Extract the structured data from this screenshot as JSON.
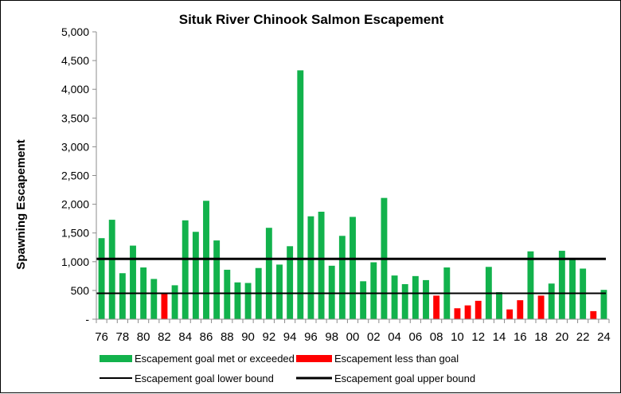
{
  "chart_data": {
    "type": "bar",
    "title": "Situk River Chinook Salmon Escapement",
    "ylabel": "Spawning Escapement",
    "xlabel": "",
    "ylim": [
      0,
      5000
    ],
    "yticks": [
      0,
      500,
      1000,
      1500,
      2000,
      2500,
      3000,
      3500,
      4000,
      4500,
      5000
    ],
    "ytick_labels": [
      "-",
      "500",
      "1,000",
      "1,500",
      "2,000",
      "2,500",
      "3,000",
      "3,500",
      "4,000",
      "4,500",
      "5,000"
    ],
    "categories": [
      "76",
      "77",
      "78",
      "79",
      "80",
      "81",
      "82",
      "83",
      "84",
      "85",
      "86",
      "87",
      "88",
      "89",
      "90",
      "91",
      "92",
      "93",
      "94",
      "95",
      "96",
      "97",
      "98",
      "99",
      "00",
      "01",
      "02",
      "03",
      "04",
      "05",
      "06",
      "07",
      "08",
      "09",
      "10",
      "11",
      "12",
      "13",
      "14",
      "15",
      "16",
      "17",
      "18",
      "19",
      "20",
      "21",
      "22",
      "23",
      "24"
    ],
    "xtick_labels": [
      "76",
      "78",
      "80",
      "82",
      "84",
      "86",
      "88",
      "90",
      "92",
      "94",
      "96",
      "98",
      "00",
      "02",
      "04",
      "06",
      "08",
      "10",
      "12",
      "14",
      "16",
      "18",
      "20",
      "22",
      "24"
    ],
    "values": [
      1410,
      1730,
      800,
      1280,
      900,
      700,
      450,
      590,
      1720,
      1520,
      2060,
      1370,
      860,
      640,
      630,
      890,
      1590,
      950,
      1270,
      4330,
      1790,
      1870,
      930,
      1450,
      1780,
      660,
      990,
      2110,
      760,
      610,
      750,
      680,
      410,
      900,
      190,
      240,
      320,
      910,
      470,
      170,
      330,
      1180,
      410,
      620,
      1190,
      1050,
      880,
      140,
      510
    ],
    "status": [
      "met",
      "met",
      "met",
      "met",
      "met",
      "met",
      "below",
      "met",
      "met",
      "met",
      "met",
      "met",
      "met",
      "met",
      "met",
      "met",
      "met",
      "met",
      "met",
      "met",
      "met",
      "met",
      "met",
      "met",
      "met",
      "met",
      "met",
      "met",
      "met",
      "met",
      "met",
      "met",
      "below",
      "met",
      "below",
      "below",
      "below",
      "met",
      "met",
      "below",
      "below",
      "met",
      "below",
      "met",
      "met",
      "met",
      "met",
      "below",
      "met"
    ],
    "lower_bound": 450,
    "upper_bound": 1050,
    "colors": {
      "met": "#12b24c",
      "below": "#ff0000",
      "bound": "#000000"
    },
    "legend": {
      "met": "Escapement goal met or exceeded",
      "below": "Escapement less than goal",
      "lower": "Escapement goal lower bound",
      "upper": "Escapement goal upper bound",
      "position": "bottom"
    },
    "grid": false
  }
}
